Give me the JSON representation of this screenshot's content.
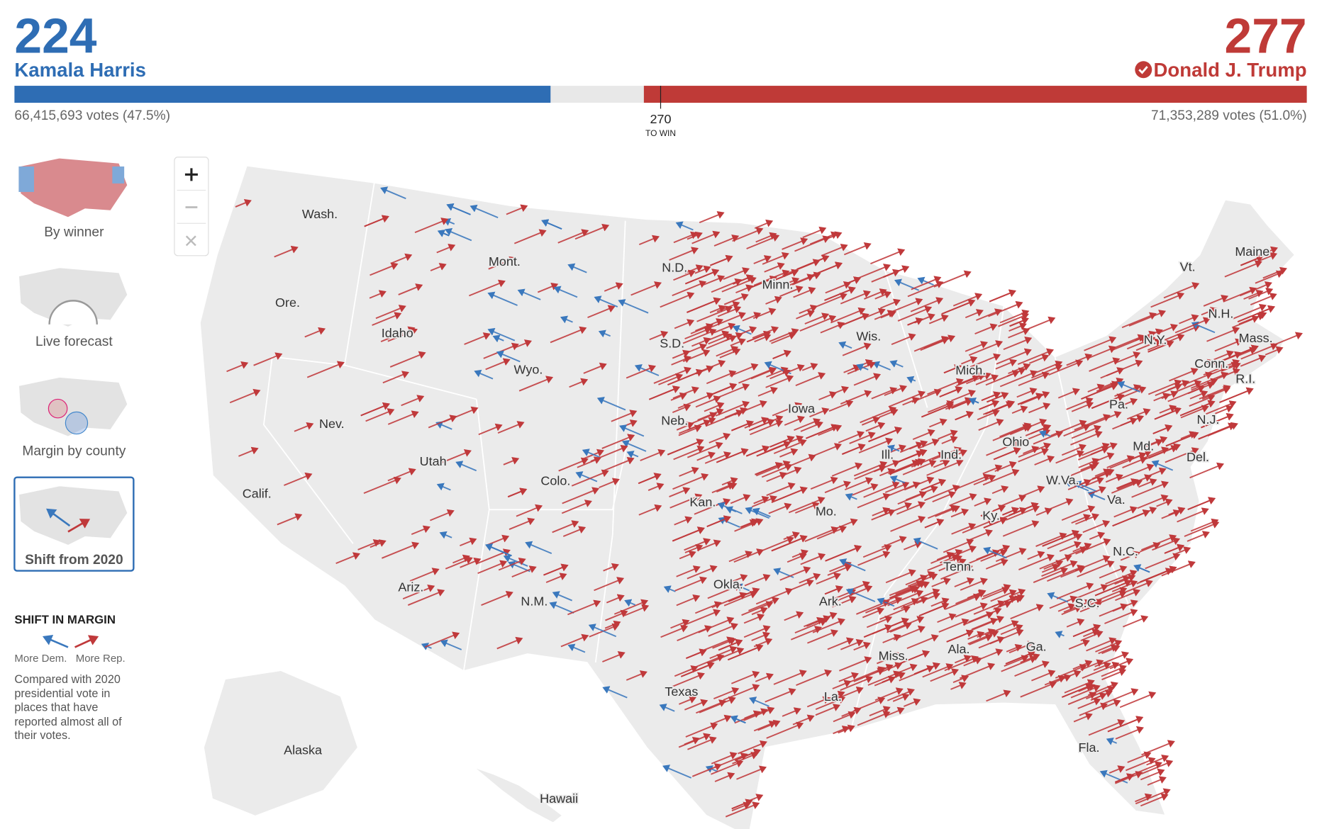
{
  "header": {
    "harris": {
      "electoral_votes": 224,
      "name": "Kamala Harris",
      "votes": "66,415,693 votes (47.5%)"
    },
    "trump": {
      "electoral_votes": 277,
      "name": "Donald J. Trump",
      "votes": "71,353,289 votes (51.0%)"
    },
    "threshold": {
      "value": 270,
      "label": "TO WIN"
    }
  },
  "sidebar": {
    "views": [
      "By winner",
      "Live forecast",
      "Margin by county",
      "Shift from 2020"
    ],
    "selected": 3
  },
  "legend": {
    "title": "SHIFT IN MARGIN",
    "dem": "More Dem.",
    "rep": "More Rep.",
    "note": "Compared with 2020 presidential vote in places that have reported almost all of their votes."
  },
  "map": {
    "labels": [
      "Wash.",
      "Ore.",
      "Calif.",
      "Nev.",
      "Idaho",
      "Mont.",
      "Wyo.",
      "Utah",
      "Ariz.",
      "Colo.",
      "N.M.",
      "N.D.",
      "S.D.",
      "Neb.",
      "Kan.",
      "Okla.",
      "Texas",
      "Minn.",
      "Iowa",
      "Mo.",
      "Ark.",
      "La.",
      "Wis.",
      "Ill.",
      "Mich.",
      "Ind.",
      "Ohio",
      "Ky.",
      "Tenn.",
      "Miss.",
      "Ala.",
      "Ga.",
      "Fla.",
      "S.C.",
      "N.C.",
      "Va.",
      "W.Va.",
      "Md.",
      "Del.",
      "Pa.",
      "N.J.",
      "N.Y.",
      "Conn.",
      "R.I.",
      "Mass.",
      "N.H.",
      "Vt.",
      "Maine",
      "Alaska",
      "Hawaii"
    ]
  }
}
